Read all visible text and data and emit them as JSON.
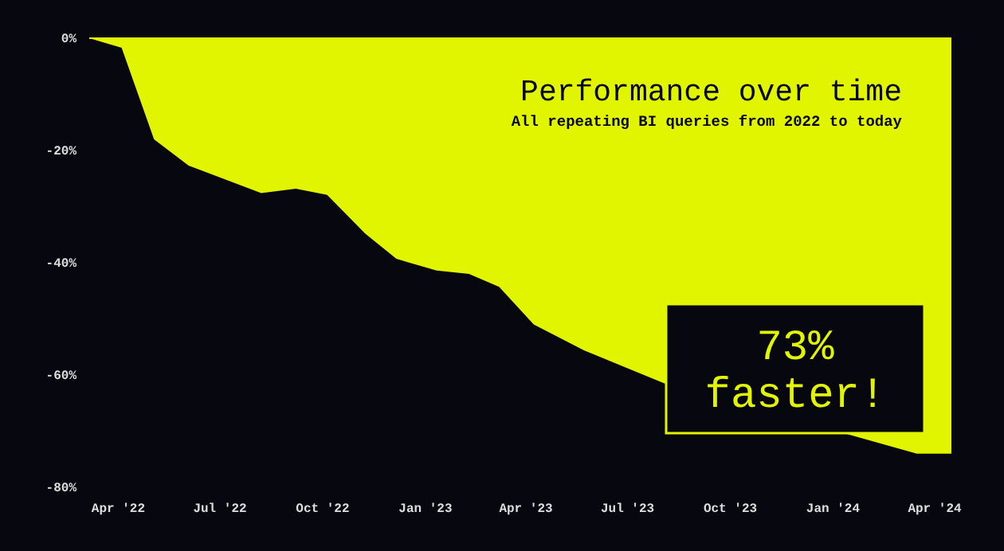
{
  "chart_data": {
    "type": "area",
    "title": "Performance over time",
    "subtitle": "All repeating BI queries from 2022 to today",
    "annotations": [
      "73% faster!"
    ],
    "x": [
      "2022-03-06",
      "2022-04-04",
      "2022-05-03",
      "2022-06-03",
      "2022-08-07",
      "2022-09-07",
      "2022-10-05",
      "2022-11-08",
      "2022-12-06",
      "2023-01-11",
      "2023-02-09",
      "2023-03-08",
      "2023-04-08",
      "2023-05-23",
      "2023-08-03",
      "2024-01-17",
      "2024-03-16",
      "2024-04-16"
    ],
    "series": [
      {
        "color": "#e2f500",
        "values": [
          0,
          -1.7,
          -18,
          -22.7,
          -27.6,
          -26.8,
          -27.9,
          -34.8,
          -39.3,
          -41.4,
          -42,
          -44.3,
          -51,
          -55.6,
          -61.5,
          -70.7,
          -74,
          -74
        ]
      }
    ],
    "xticks": [
      {
        "value": "2022-04-01",
        "label": "Apr '22"
      },
      {
        "value": "2022-07-01",
        "label": "Jul '22"
      },
      {
        "value": "2022-10-01",
        "label": "Oct '22"
      },
      {
        "value": "2023-01-01",
        "label": "Jan '23"
      },
      {
        "value": "2023-04-01",
        "label": "Apr '23"
      },
      {
        "value": "2023-07-01",
        "label": "Jul '23"
      },
      {
        "value": "2023-10-01",
        "label": "Oct '23"
      },
      {
        "value": "2024-01-01",
        "label": "Jan '24"
      },
      {
        "value": "2024-04-01",
        "label": "Apr '24"
      }
    ],
    "xlim": [
      "2022-03-06",
      "2024-04-16"
    ],
    "ylim": [
      -80,
      0
    ],
    "yticks": [
      {
        "value": 0,
        "label": "0%"
      },
      {
        "value": -20,
        "label": "-20%"
      },
      {
        "value": -40,
        "label": "-40%"
      },
      {
        "value": -60,
        "label": "-60%"
      },
      {
        "value": -80,
        "label": "-80%"
      }
    ],
    "grid": false
  }
}
